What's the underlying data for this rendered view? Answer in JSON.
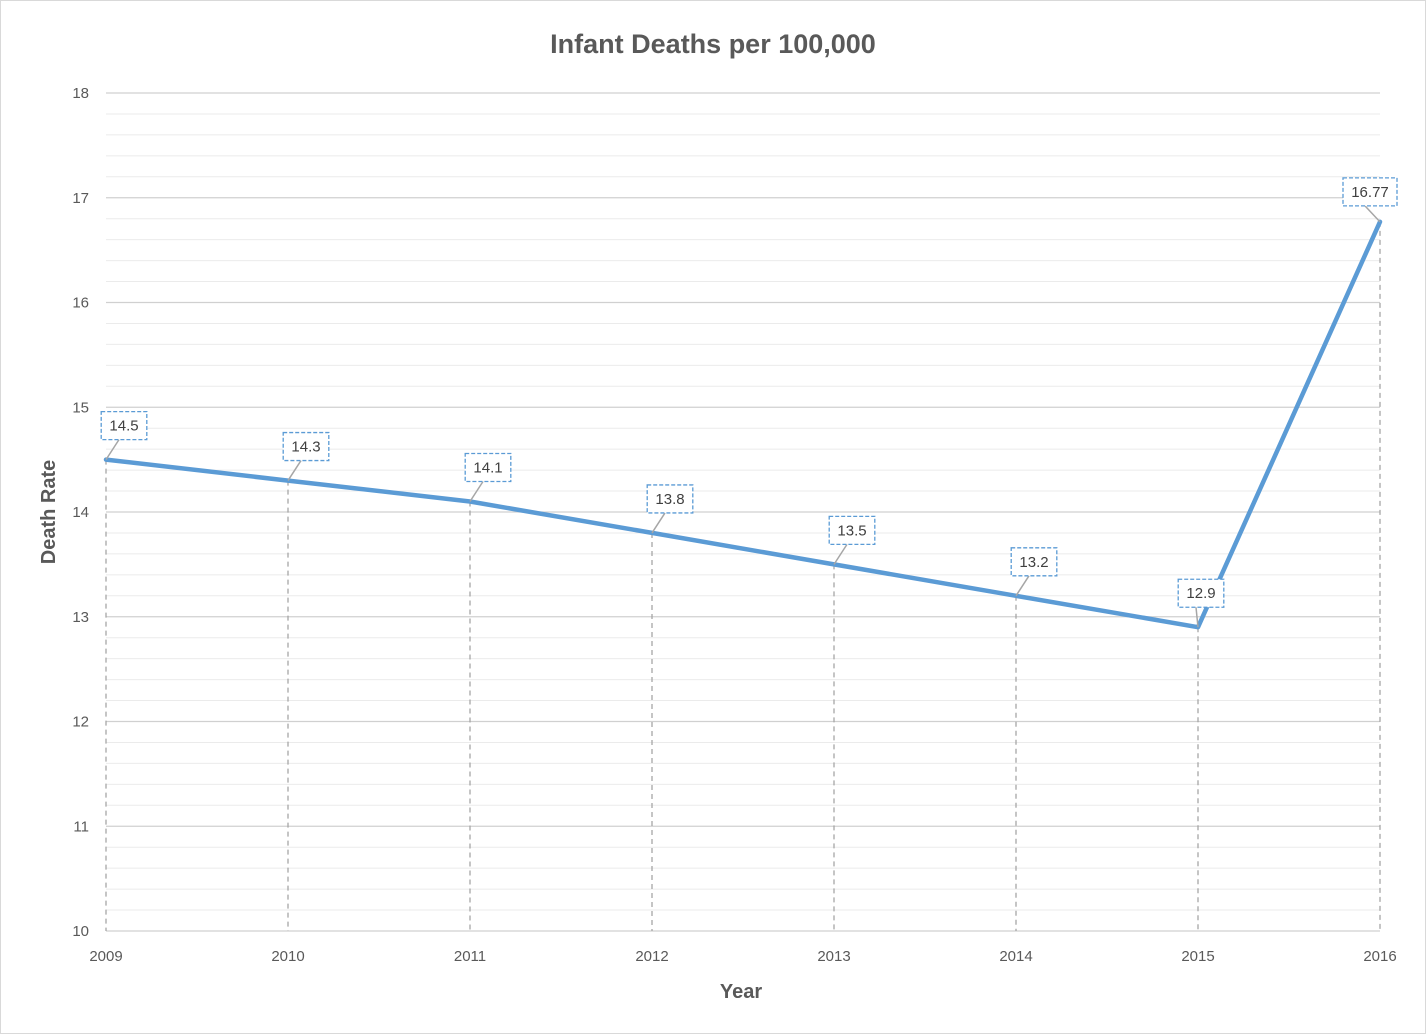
{
  "chart_data": {
    "type": "line",
    "title": "Infant Deaths per 100,000",
    "xlabel": "Year",
    "ylabel": "Death Rate",
    "categories": [
      "2009",
      "2010",
      "2011",
      "2012",
      "2013",
      "2014",
      "2015",
      "2016"
    ],
    "values": [
      14.5,
      14.3,
      14.1,
      13.8,
      13.5,
      13.2,
      12.9,
      16.77
    ],
    "value_labels": [
      "14.5",
      "14.3",
      "14.1",
      "13.8",
      "13.5",
      "13.2",
      "12.9",
      "16.77"
    ],
    "ylim": [
      10,
      18
    ],
    "y_ticks": [
      "10",
      "11",
      "12",
      "13",
      "14",
      "15",
      "16",
      "17",
      "18"
    ],
    "y_minor_step": 0.2,
    "drop_lines": true,
    "grid": true,
    "legend": "none",
    "colors": {
      "line": "#5b9bd5",
      "major_grid": "#d0d0d0",
      "minor_grid": "#ebebeb",
      "drop_line": "#a6a6a6",
      "label_border": "#5b9bd5",
      "leader_line": "#a6a6a6"
    }
  }
}
